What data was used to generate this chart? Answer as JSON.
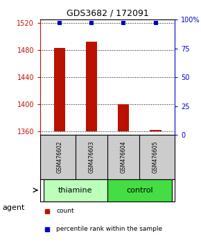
{
  "title": "GDS3682 / 172091",
  "samples": [
    "GSM476602",
    "GSM476603",
    "GSM476604",
    "GSM476605"
  ],
  "bar_values": [
    1483,
    1492,
    1400,
    1362
  ],
  "percentile_values": [
    97,
    97,
    97,
    97
  ],
  "bar_color": "#bb1100",
  "percentile_color": "#0000cc",
  "ylim_left": [
    1355,
    1525
  ],
  "ylim_right": [
    0,
    100
  ],
  "yticks_left": [
    1360,
    1400,
    1440,
    1480,
    1520
  ],
  "yticks_right": [
    0,
    25,
    50,
    75,
    100
  ],
  "ytick_labels_right": [
    "0",
    "25",
    "50",
    "75",
    "100%"
  ],
  "groups": [
    {
      "label": "thiamine",
      "samples": [
        0,
        1
      ],
      "color": "#bbffbb"
    },
    {
      "label": "control",
      "samples": [
        2,
        3
      ],
      "color": "#44dd44"
    }
  ],
  "agent_label": "agent",
  "legend_items": [
    {
      "label": "count",
      "color": "#bb1100"
    },
    {
      "label": "percentile rank within the sample",
      "color": "#0000cc"
    }
  ],
  "background_color": "#ffffff",
  "plot_bg": "#ffffff",
  "bar_bottom": 1360,
  "sample_bg": "#cccccc"
}
